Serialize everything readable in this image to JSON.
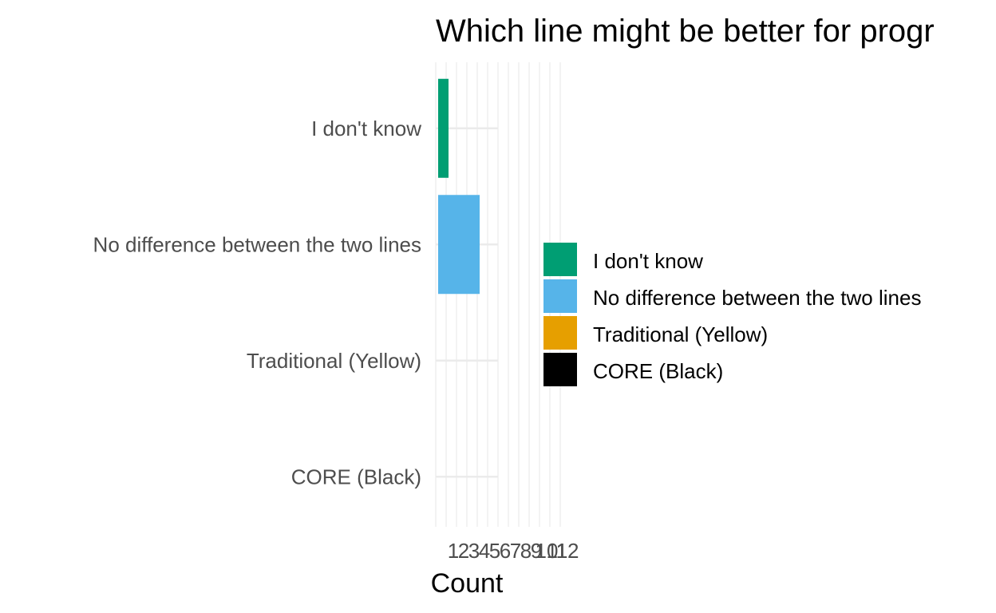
{
  "chart_data": {
    "type": "bar",
    "orientation": "horizontal",
    "title": "Which line might be better for progr",
    "xlabel": "Count",
    "ylabel": "",
    "categories": [
      "I don't know",
      "No difference between the two lines",
      "Traditional (Yellow)",
      "CORE (Black)"
    ],
    "values": [
      1,
      4,
      0,
      0
    ],
    "colors": [
      "#009E73",
      "#56B4E9",
      "#E69F00",
      "#000000"
    ],
    "x_ticks": [
      1,
      2,
      3,
      4,
      5,
      6,
      7,
      8,
      9,
      10,
      11,
      12
    ],
    "x_tick_labels": [
      "1",
      "2",
      "3",
      "4",
      "5",
      "6",
      "7",
      "8",
      "9",
      "10",
      "11",
      "12"
    ],
    "xlim": [
      0,
      4.1
    ],
    "grid": true,
    "legend": {
      "position": "right",
      "entries": [
        "I don't know",
        "No difference between the two lines",
        "Traditional (Yellow)",
        "CORE (Black)"
      ]
    }
  }
}
